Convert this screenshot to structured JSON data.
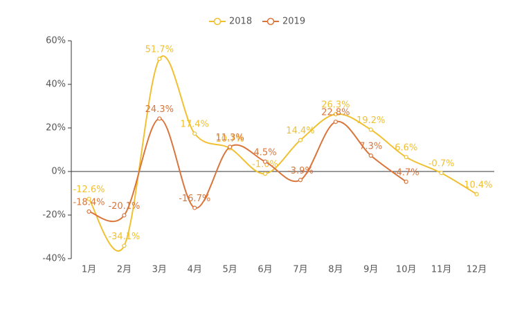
{
  "chart_data": {
    "type": "line",
    "categories": [
      "1月",
      "2月",
      "3月",
      "4月",
      "5月",
      "6月",
      "7月",
      "8月",
      "9月",
      "10月",
      "11月",
      "12月"
    ],
    "series": [
      {
        "name": "2018",
        "color": "#f0c030",
        "values": [
          -12.6,
          -34.1,
          51.7,
          17.4,
          10.7,
          -1.0,
          14.4,
          26.3,
          19.2,
          6.6,
          -0.7,
          -10.4
        ],
        "value_labels": [
          "-12.6%",
          "-34.1%",
          "51.7%",
          "17.4%",
          "10.7%",
          "-1.0%",
          "14.4%",
          "26.3%",
          "19.2%",
          "6.6%",
          "-0.7%",
          "-10.4%"
        ]
      },
      {
        "name": "2019",
        "color": "#d9743a",
        "values": [
          -18.4,
          -20.1,
          24.3,
          -16.7,
          11.3,
          4.5,
          -3.9,
          22.8,
          7.3,
          -4.7,
          null,
          null
        ],
        "value_labels": [
          "-18.4%",
          "-20.1%",
          "24.3%",
          "-16.7%",
          "11.3%",
          "4.5%",
          "-3.9%",
          "22.8%",
          "7.3%",
          "-4.7%",
          null,
          null
        ]
      }
    ],
    "ylim": [
      -40,
      60
    ],
    "yticks": [
      {
        "value": -40,
        "label": "-40%"
      },
      {
        "value": -20,
        "label": "-20%"
      },
      {
        "value": 0,
        "label": "0%"
      },
      {
        "value": 20,
        "label": "20%"
      },
      {
        "value": 40,
        "label": "40%"
      },
      {
        "value": 60,
        "label": "60%"
      }
    ],
    "legend": "top"
  }
}
